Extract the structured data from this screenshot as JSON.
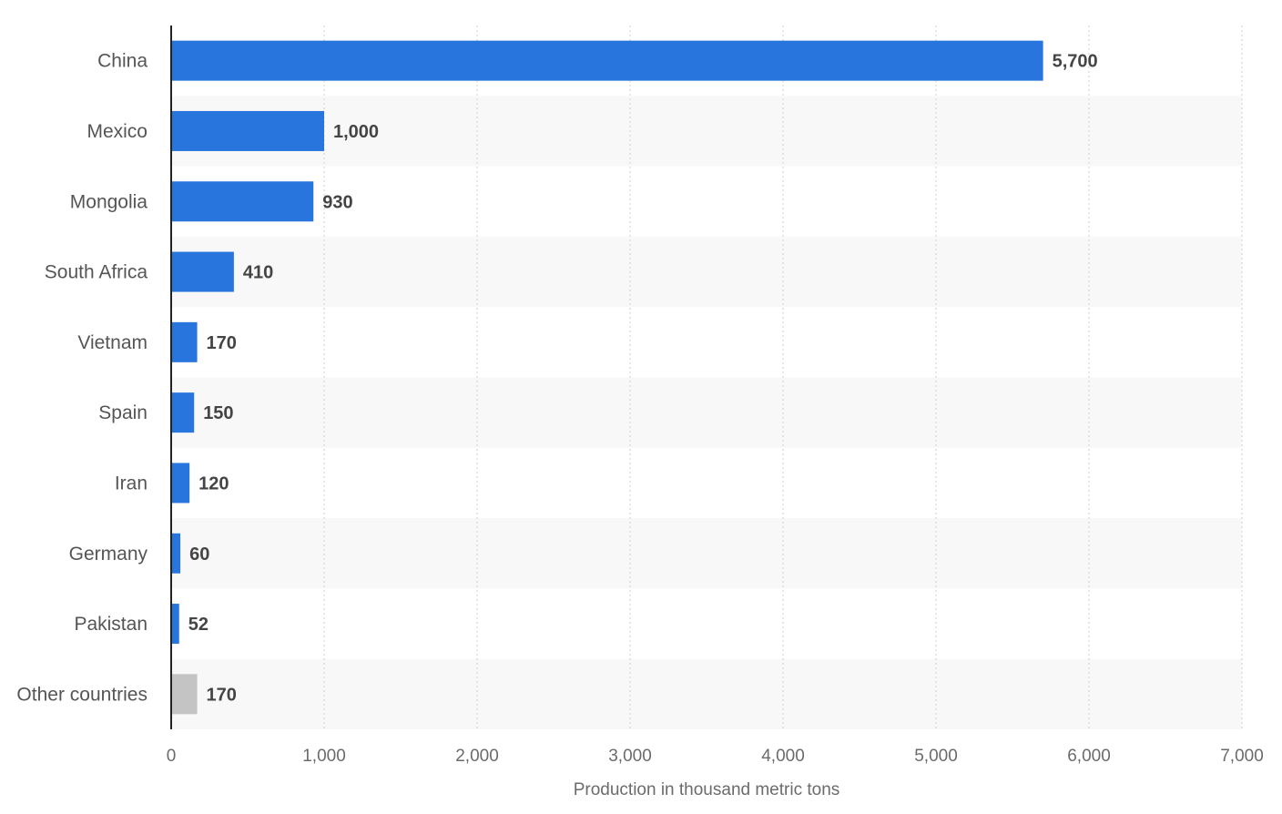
{
  "chart_data": {
    "type": "bar",
    "orientation": "horizontal",
    "categories": [
      "China",
      "Mexico",
      "Mongolia",
      "South Africa",
      "Vietnam",
      "Spain",
      "Iran",
      "Germany",
      "Pakistan",
      "Other countries"
    ],
    "values": [
      5700,
      1000,
      930,
      410,
      170,
      150,
      120,
      60,
      52,
      170
    ],
    "value_labels": [
      "5,700",
      "1,000",
      "930",
      "410",
      "170",
      "150",
      "120",
      "60",
      "52",
      "170"
    ],
    "bar_colors": [
      "#2876dd",
      "#2876dd",
      "#2876dd",
      "#2876dd",
      "#2876dd",
      "#2876dd",
      "#2876dd",
      "#2876dd",
      "#2876dd",
      "#c4c4c4"
    ],
    "xlabel": "Production in thousand metric tons",
    "ylabel": "",
    "xlim": [
      0,
      7000
    ],
    "x_ticks": [
      0,
      1000,
      2000,
      3000,
      4000,
      5000,
      6000,
      7000
    ],
    "x_tick_labels": [
      "0",
      "1,000",
      "2,000",
      "3,000",
      "4,000",
      "5,000",
      "6,000",
      "7,000"
    ],
    "grid": "vertical dotted",
    "legend": "none"
  }
}
